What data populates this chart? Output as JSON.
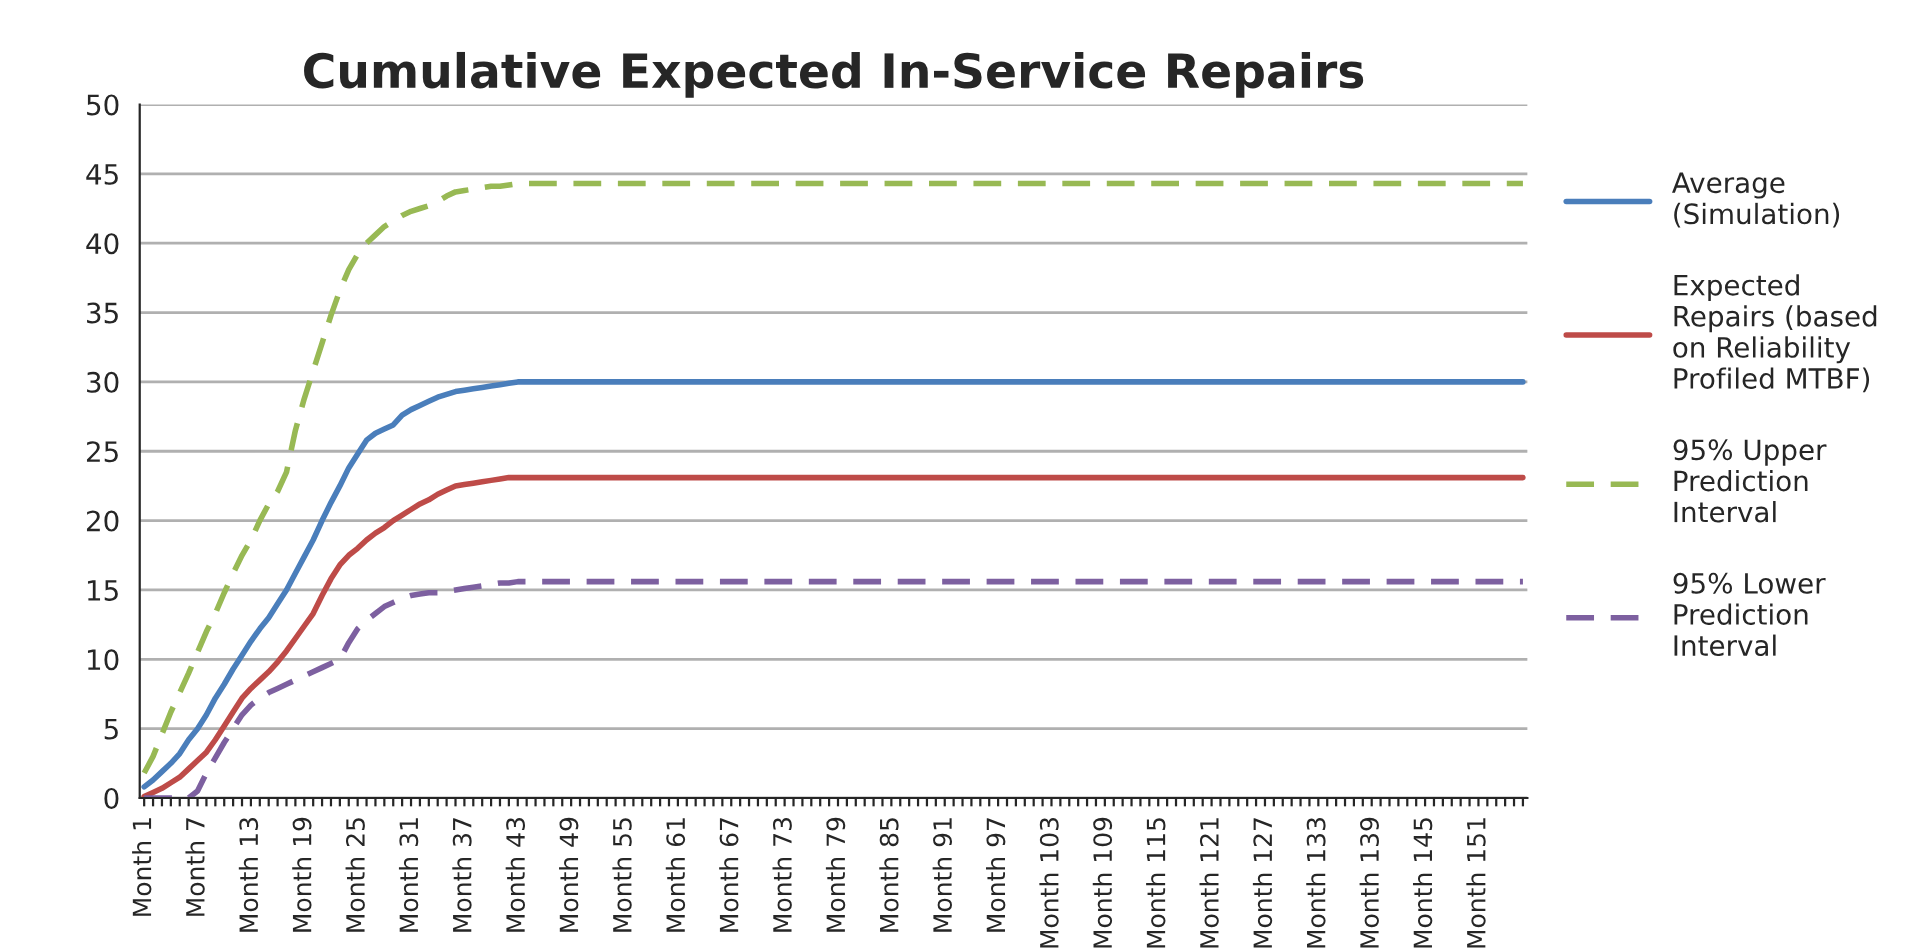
{
  "chart_data": {
    "type": "line",
    "title": "Cumulative Expected In-Service Repairs",
    "categories": [
      "Month 1",
      null,
      null,
      null,
      null,
      null,
      "Month 7",
      null,
      null,
      null,
      null,
      null,
      "Month 13",
      null,
      null,
      null,
      null,
      null,
      "Month 19",
      null,
      null,
      null,
      null,
      null,
      "Month 25",
      null,
      null,
      null,
      null,
      null,
      "Month 31",
      null,
      null,
      null,
      null,
      null,
      "Month 37",
      null,
      null,
      null,
      null,
      null,
      "Month 43",
      null,
      null,
      null,
      null,
      null,
      "Month 49",
      null,
      null,
      null,
      null,
      null,
      "Month 55",
      null,
      null,
      null,
      null,
      null,
      "Month 61",
      null,
      null,
      null,
      null,
      null,
      "Month 67",
      null,
      null,
      null,
      null,
      null,
      "Month 73",
      null,
      null,
      null,
      null,
      null,
      "Month 79",
      null,
      null,
      null,
      null,
      null,
      "Month 85",
      null,
      null,
      null,
      null,
      null,
      "Month 91",
      null,
      null,
      null,
      null,
      null,
      "Month 97",
      null,
      null,
      null,
      null,
      null,
      "Month 103",
      null,
      null,
      null,
      null,
      null,
      "Month 109",
      null,
      null,
      null,
      null,
      null,
      "Month 115",
      null,
      null,
      null,
      null,
      null,
      "Month 121",
      null,
      null,
      null,
      null,
      null,
      "Month 127",
      null,
      null,
      null,
      null,
      null,
      "Month 133",
      null,
      null,
      null,
      null,
      null,
      "Month 139",
      null,
      null,
      null,
      null,
      null,
      "Month 145",
      null,
      null,
      null,
      null,
      null,
      "Month 151",
      null,
      null,
      null,
      null,
      null
    ],
    "series": [
      {
        "name": "Average\n(Simulation)",
        "color": "#4a7ebb",
        "line_style": "solid",
        "values": [
          0.8,
          1.3,
          1.9,
          2.5,
          3.2,
          4.2,
          5.0,
          6.0,
          7.2,
          8.2,
          9.3,
          10.3,
          11.3,
          12.2,
          13.0,
          14.0,
          15.0,
          16.2,
          17.4,
          18.6,
          20.0,
          21.3,
          22.5,
          23.8,
          24.8,
          25.8,
          26.3,
          26.6,
          26.9,
          27.6,
          28.0,
          28.3,
          28.6,
          28.9,
          29.1,
          29.3,
          29.4,
          29.5,
          29.6,
          29.7,
          29.8,
          29.9,
          30,
          30,
          30,
          30,
          30,
          30,
          30,
          30,
          30,
          30,
          30,
          30,
          30,
          30,
          30,
          30,
          30,
          30,
          30,
          30,
          30,
          30,
          30,
          30,
          30,
          30,
          30,
          30,
          30,
          30,
          30,
          30,
          30,
          30,
          30,
          30,
          30,
          30,
          30,
          30,
          30,
          30,
          30,
          30,
          30,
          30,
          30,
          30,
          30,
          30,
          30,
          30,
          30,
          30,
          30,
          30,
          30,
          30,
          30,
          30,
          30,
          30,
          30,
          30,
          30,
          30,
          30,
          30,
          30,
          30,
          30,
          30,
          30,
          30,
          30,
          30,
          30,
          30,
          30,
          30,
          30,
          30,
          30,
          30,
          30,
          30,
          30,
          30,
          30,
          30,
          30,
          30,
          30,
          30,
          30,
          30,
          30,
          30,
          30,
          30,
          30,
          30,
          30,
          30,
          30,
          30,
          30,
          30,
          30,
          30,
          30,
          30,
          30,
          30
        ]
      },
      {
        "name": "Expected\nRepairs (based\non Reliability\nProfiled MTBF)",
        "color": "#be4b48",
        "line_style": "solid",
        "values": [
          0.1,
          0.4,
          0.7,
          1.1,
          1.5,
          2.1,
          2.7,
          3.3,
          4.2,
          5.2,
          6.2,
          7.2,
          7.9,
          8.5,
          9.1,
          9.8,
          10.6,
          11.5,
          12.4,
          13.3,
          14.6,
          15.8,
          16.8,
          17.5,
          18.0,
          18.6,
          19.1,
          19.5,
          20.0,
          20.4,
          20.8,
          21.2,
          21.5,
          21.9,
          22.2,
          22.5,
          22.6,
          22.7,
          22.8,
          22.9,
          23.0,
          23.1,
          23.1,
          23.1,
          23.1,
          23.1,
          23.1,
          23.1,
          23.1,
          23.1,
          23.1,
          23.1,
          23.1,
          23.1,
          23.1,
          23.1,
          23.1,
          23.1,
          23.1,
          23.1,
          23.1,
          23.1,
          23.1,
          23.1,
          23.1,
          23.1,
          23.1,
          23.1,
          23.1,
          23.1,
          23.1,
          23.1,
          23.1,
          23.1,
          23.1,
          23.1,
          23.1,
          23.1,
          23.1,
          23.1,
          23.1,
          23.1,
          23.1,
          23.1,
          23.1,
          23.1,
          23.1,
          23.1,
          23.1,
          23.1,
          23.1,
          23.1,
          23.1,
          23.1,
          23.1,
          23.1,
          23.1,
          23.1,
          23.1,
          23.1,
          23.1,
          23.1,
          23.1,
          23.1,
          23.1,
          23.1,
          23.1,
          23.1,
          23.1,
          23.1,
          23.1,
          23.1,
          23.1,
          23.1,
          23.1,
          23.1,
          23.1,
          23.1,
          23.1,
          23.1,
          23.1,
          23.1,
          23.1,
          23.1,
          23.1,
          23.1,
          23.1,
          23.1,
          23.1,
          23.1,
          23.1,
          23.1,
          23.1,
          23.1,
          23.1,
          23.1,
          23.1,
          23.1,
          23.1,
          23.1,
          23.1,
          23.1,
          23.1,
          23.1,
          23.1,
          23.1,
          23.1,
          23.1,
          23.1,
          23.1,
          23.1,
          23.1,
          23.1,
          23.1,
          23.1,
          23.1
        ]
      },
      {
        "name": "95% Upper\nPrediction\nInterval",
        "color": "#98b954",
        "line_style": "dashed",
        "values": [
          1.8,
          3.0,
          4.6,
          6.2,
          7.6,
          9.0,
          10.5,
          12.0,
          13.3,
          14.8,
          16.2,
          17.5,
          18.6,
          20.0,
          21.2,
          22.1,
          23.5,
          26.5,
          28.8,
          30.8,
          32.8,
          34.8,
          36.6,
          38.1,
          39.2,
          40.0,
          40.6,
          41.2,
          41.6,
          42.0,
          42.3,
          42.5,
          42.7,
          43.0,
          43.4,
          43.7,
          43.8,
          43.9,
          44.0,
          44.1,
          44.1,
          44.2,
          44.3,
          44.3,
          44.3,
          44.3,
          44.3,
          44.3,
          44.3,
          44.3,
          44.3,
          44.3,
          44.3,
          44.3,
          44.3,
          44.3,
          44.3,
          44.3,
          44.3,
          44.3,
          44.3,
          44.3,
          44.3,
          44.3,
          44.3,
          44.3,
          44.3,
          44.3,
          44.3,
          44.3,
          44.3,
          44.3,
          44.3,
          44.3,
          44.3,
          44.3,
          44.3,
          44.3,
          44.3,
          44.3,
          44.3,
          44.3,
          44.3,
          44.3,
          44.3,
          44.3,
          44.3,
          44.3,
          44.3,
          44.3,
          44.3,
          44.3,
          44.3,
          44.3,
          44.3,
          44.3,
          44.3,
          44.3,
          44.3,
          44.3,
          44.3,
          44.3,
          44.3,
          44.3,
          44.3,
          44.3,
          44.3,
          44.3,
          44.3,
          44.3,
          44.3,
          44.3,
          44.3,
          44.3,
          44.3,
          44.3,
          44.3,
          44.3,
          44.3,
          44.3,
          44.3,
          44.3,
          44.3,
          44.3,
          44.3,
          44.3,
          44.3,
          44.3,
          44.3,
          44.3,
          44.3,
          44.3,
          44.3,
          44.3,
          44.3,
          44.3,
          44.3,
          44.3,
          44.3,
          44.3,
          44.3,
          44.3,
          44.3,
          44.3,
          44.3,
          44.3,
          44.3,
          44.3,
          44.3,
          44.3,
          44.3,
          44.3,
          44.3,
          44.3,
          44.3,
          44.3
        ]
      },
      {
        "name": "95% Lower\nPrediction\nInterval",
        "color": "#7d60a0",
        "line_style": "dashed",
        "values": [
          0,
          0,
          0,
          0,
          0,
          0,
          0.5,
          1.8,
          2.9,
          4.0,
          5.0,
          6.0,
          6.7,
          7.2,
          7.6,
          7.9,
          8.2,
          8.5,
          8.8,
          9.1,
          9.4,
          9.7,
          10.0,
          11.2,
          12.2,
          12.8,
          13.3,
          13.8,
          14.1,
          14.4,
          14.6,
          14.7,
          14.8,
          14.8,
          14.9,
          15.0,
          15.1,
          15.2,
          15.3,
          15.4,
          15.5,
          15.5,
          15.6,
          15.6,
          15.6,
          15.6,
          15.6,
          15.6,
          15.6,
          15.6,
          15.6,
          15.6,
          15.6,
          15.6,
          15.6,
          15.6,
          15.6,
          15.6,
          15.6,
          15.6,
          15.6,
          15.6,
          15.6,
          15.6,
          15.6,
          15.6,
          15.6,
          15.6,
          15.6,
          15.6,
          15.6,
          15.6,
          15.6,
          15.6,
          15.6,
          15.6,
          15.6,
          15.6,
          15.6,
          15.6,
          15.6,
          15.6,
          15.6,
          15.6,
          15.6,
          15.6,
          15.6,
          15.6,
          15.6,
          15.6,
          15.6,
          15.6,
          15.6,
          15.6,
          15.6,
          15.6,
          15.6,
          15.6,
          15.6,
          15.6,
          15.6,
          15.6,
          15.6,
          15.6,
          15.6,
          15.6,
          15.6,
          15.6,
          15.6,
          15.6,
          15.6,
          15.6,
          15.6,
          15.6,
          15.6,
          15.6,
          15.6,
          15.6,
          15.6,
          15.6,
          15.6,
          15.6,
          15.6,
          15.6,
          15.6,
          15.6,
          15.6,
          15.6,
          15.6,
          15.6,
          15.6,
          15.6,
          15.6,
          15.6,
          15.6,
          15.6,
          15.6,
          15.6,
          15.6,
          15.6,
          15.6,
          15.6,
          15.6,
          15.6,
          15.6,
          15.6,
          15.6,
          15.6,
          15.6,
          15.6,
          15.6,
          15.6,
          15.6,
          15.6,
          15.6,
          15.6
        ]
      }
    ],
    "ylim": [
      0,
      50
    ],
    "yticks": [
      0,
      5,
      10,
      15,
      20,
      25,
      30,
      35,
      40,
      45,
      50
    ],
    "grid": "y",
    "legend": "right",
    "marker": "none"
  }
}
